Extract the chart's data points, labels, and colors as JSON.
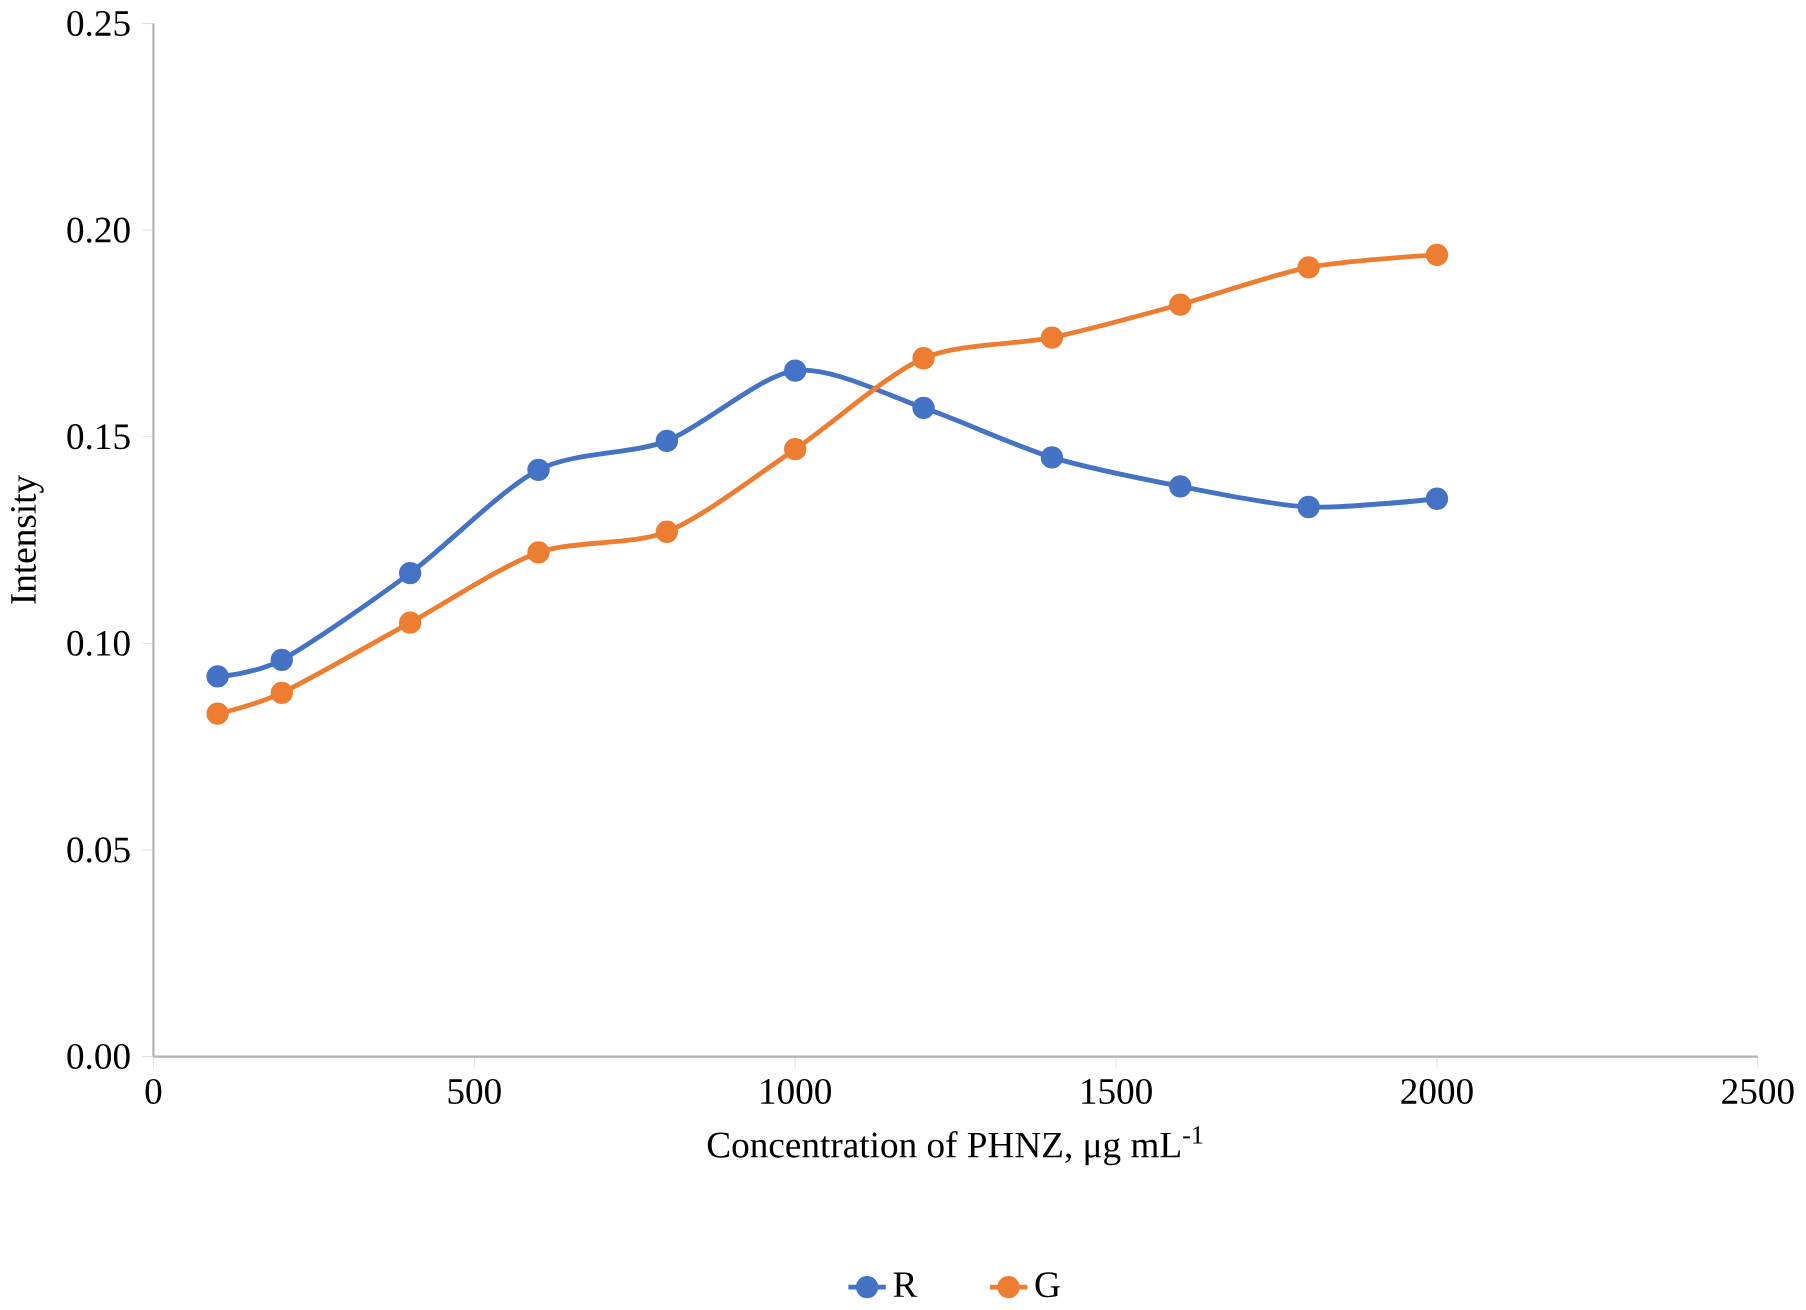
{
  "chart_data": {
    "type": "line",
    "xlabel": "Concentration of PHNZ, μg mL$^{-1}$",
    "ylabel": "Intensity",
    "x": [
      100,
      200,
      400,
      600,
      800,
      1000,
      1200,
      1400,
      1600,
      1800,
      2000
    ],
    "series": [
      {
        "name": "R",
        "color": "#4472c4",
        "values": [
          0.092,
          0.096,
          0.117,
          0.142,
          0.149,
          0.166,
          0.157,
          0.145,
          0.138,
          0.133,
          0.135
        ]
      },
      {
        "name": "G",
        "color": "#ed7d31",
        "values": [
          0.083,
          0.088,
          0.105,
          0.122,
          0.127,
          0.147,
          0.169,
          0.174,
          0.182,
          0.191,
          0.194
        ]
      }
    ],
    "xlim": [
      0,
      2500
    ],
    "xticks": [
      0,
      500,
      1000,
      1500,
      2000,
      2500
    ],
    "ylim": [
      0,
      0.25
    ],
    "yticks": [
      {
        "value": 0,
        "label": "0.00"
      },
      {
        "value": 0.05,
        "label": "0.05"
      },
      {
        "value": 0.1,
        "label": "0.10"
      },
      {
        "value": 0.15,
        "label": "0.15"
      },
      {
        "value": 0.2,
        "label": "0.20"
      },
      {
        "value": 0.25,
        "label": "0.25"
      }
    ],
    "legend": "bottom",
    "marker": "circle",
    "line_style": "solid",
    "grid": false
  }
}
